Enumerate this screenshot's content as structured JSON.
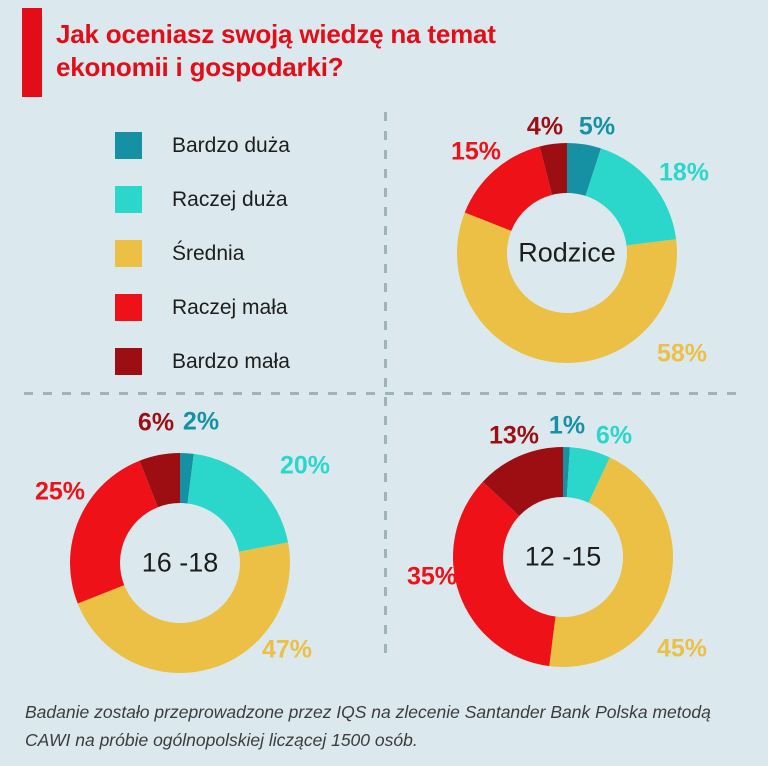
{
  "title": {
    "line1": "Jak oceniasz swoją wiedzę na temat",
    "line2": "ekonomii i gospodarki?"
  },
  "colors": {
    "background": "#dbe9ee",
    "brand_red": "#e30d18",
    "text_dark": "#1d1d1b",
    "footer_text": "#3c3c3c",
    "dash": "#9fb3ba"
  },
  "legend": {
    "items": [
      {
        "label": "Bardzo duża",
        "color": "#1691a3"
      },
      {
        "label": "Raczej duża",
        "color": "#2bd6ca"
      },
      {
        "label": "Średnia",
        "color": "#ebc044"
      },
      {
        "label": "Raczej mała",
        "color": "#ee1118"
      },
      {
        "label": "Bardzo mała",
        "color": "#9d0e13"
      }
    ]
  },
  "chart_data": [
    {
      "type": "pie",
      "donut": true,
      "title": "Rodzice",
      "categories": [
        "Bardzo duża",
        "Raczej duża",
        "Średnia",
        "Raczej mała",
        "Bardzo mała"
      ],
      "values": [
        5,
        18,
        58,
        15,
        4
      ],
      "labels_pct": [
        "5%",
        "18%",
        "58%",
        "15%",
        "4%"
      ]
    },
    {
      "type": "pie",
      "donut": true,
      "title": "16 -18",
      "categories": [
        "Bardzo duża",
        "Raczej duża",
        "Średnia",
        "Raczej mała",
        "Bardzo mała"
      ],
      "values": [
        2,
        20,
        47,
        25,
        6
      ],
      "labels_pct": [
        "2%",
        "20%",
        "47%",
        "25%",
        "6%"
      ]
    },
    {
      "type": "pie",
      "donut": true,
      "title": "12 -15",
      "categories": [
        "Bardzo duża",
        "Raczej duża",
        "Średnia",
        "Raczej mała",
        "Bardzo mała"
      ],
      "values": [
        1,
        6,
        45,
        35,
        13
      ],
      "labels_pct": [
        "1%",
        "6%",
        "45%",
        "35%",
        "13%"
      ]
    }
  ],
  "footer": {
    "line1": "Badanie zostało przeprowadzone przez IQS na zlecenie Santander Bank Polska metodą",
    "line2": "CAWI na próbie ogólnopolskiej liczącej 1500 osób."
  }
}
